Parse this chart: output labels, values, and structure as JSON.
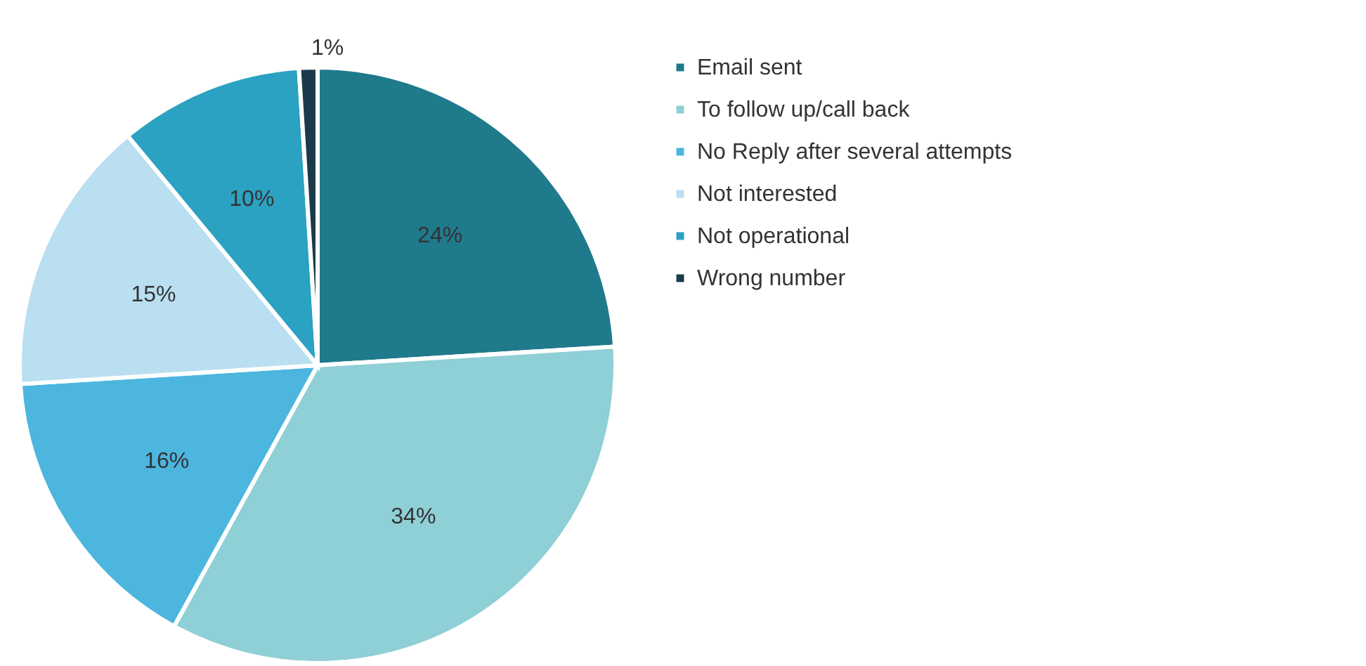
{
  "chart_data": {
    "type": "pie",
    "categories": [
      "Email sent",
      "To follow up/call back",
      "No Reply after several attempts",
      "Not interested",
      "Not operational",
      "Wrong number"
    ],
    "values": [
      24,
      34,
      16,
      15,
      10,
      1
    ],
    "colors": [
      "#1f7a8c",
      "#8fcfd6",
      "#4cb6df",
      "#b9dff0",
      "#2ba2c2",
      "#1c3a4c"
    ],
    "value_labels": [
      "24%",
      "34%",
      "16%",
      "15%",
      "10%",
      "1%"
    ],
    "legend": "right"
  }
}
